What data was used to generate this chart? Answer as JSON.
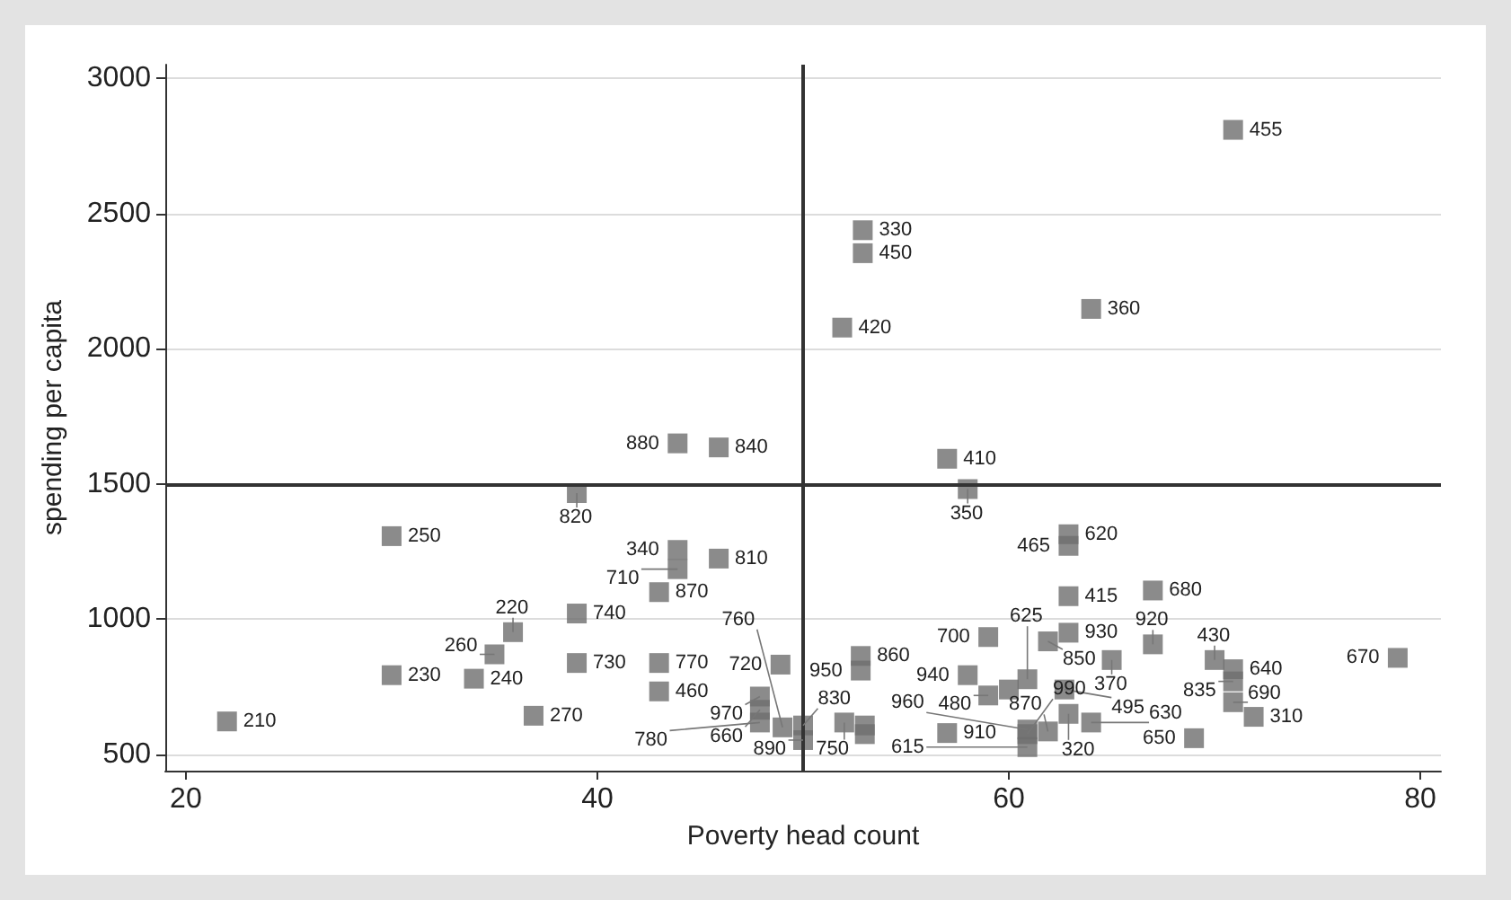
{
  "chart_data": {
    "type": "scatter",
    "xlabel": "Poverty head count",
    "ylabel": "spending per capita",
    "x": [
      22.0,
      30.0,
      30.0,
      34.0,
      35.0,
      35.9,
      36.9,
      39.0,
      39.0,
      39.0,
      43.0,
      43.0,
      43.0,
      43.9,
      45.9,
      43.9,
      43.9,
      45.9,
      47.9,
      47.9,
      47.9,
      48.9,
      50.0,
      50.0,
      52.0,
      52.8,
      52.8,
      57.0,
      57.0,
      58.0,
      62.9,
      62.9,
      62.9,
      67.0,
      59.0,
      61.9,
      62.9,
      65.0,
      67.0,
      70.0,
      70.9,
      70.9,
      70.9,
      71.9,
      69.0,
      78.9,
      58.0,
      59.0,
      60.0,
      60.9,
      62.7,
      62.9,
      64.0,
      61.9,
      60.9,
      60.9,
      60.9,
      70.9,
      52.9,
      52.9,
      51.9,
      64.0,
      49.0,
      53.0,
      53.0
    ],
    "series": [
      {
        "color": "#6e6e6e",
        "values": [
          622,
          1307,
          793,
          780,
          870,
          952,
          643,
          1021,
          838,
          1466,
          1100,
          838,
          733,
          1650,
          1635,
          1256,
          1185,
          1224,
          714,
          665,
          618,
          832,
          607,
          553,
          618,
          864,
          810,
          579,
          1593,
          1481,
          1314,
          1271,
          1085,
          1106,
          934,
          918,
          950,
          849,
          907,
          849,
          815,
          770,
          693,
          639,
          560,
          857,
          793,
          718,
          740,
          778,
          740,
          650,
          618,
          585,
          592,
          575,
          527,
          2809,
          2438,
          2353,
          2078,
          2147,
          600,
          607,
          575
        ]
      }
    ],
    "annotations": [
      {
        "text": "210",
        "x": 22.0,
        "y": 622
      },
      {
        "text": "250",
        "x": 30.0,
        "y": 1307
      },
      {
        "text": "230",
        "x": 30.0,
        "y": 793
      },
      {
        "text": "240",
        "x": 34.0,
        "y": 780
      },
      {
        "text": "260",
        "x": 35.0,
        "y": 870
      },
      {
        "text": "220",
        "x": 35.9,
        "y": 952
      },
      {
        "text": "270",
        "x": 36.9,
        "y": 643
      },
      {
        "text": "740",
        "x": 39.0,
        "y": 1021
      },
      {
        "text": "730",
        "x": 39.0,
        "y": 838
      },
      {
        "text": "820",
        "x": 39.0,
        "y": 1466
      },
      {
        "text": "870",
        "x": 43.0,
        "y": 1100
      },
      {
        "text": "770",
        "x": 43.0,
        "y": 838
      },
      {
        "text": "460",
        "x": 43.0,
        "y": 733
      },
      {
        "text": "880",
        "x": 43.9,
        "y": 1650
      },
      {
        "text": "840",
        "x": 45.9,
        "y": 1635
      },
      {
        "text": "340",
        "x": 43.9,
        "y": 1256
      },
      {
        "text": "710",
        "x": 43.9,
        "y": 1185
      },
      {
        "text": "810",
        "x": 45.9,
        "y": 1224
      },
      {
        "text": "970",
        "x": 47.9,
        "y": 714
      },
      {
        "text": "660",
        "x": 47.9,
        "y": 665
      },
      {
        "text": "780",
        "x": 47.9,
        "y": 618
      },
      {
        "text": "720",
        "x": 48.9,
        "y": 832
      },
      {
        "text": "830",
        "x": 50.0,
        "y": 607
      },
      {
        "text": "890",
        "x": 50.0,
        "y": 553
      },
      {
        "text": "750",
        "x": 52.0,
        "y": 618
      },
      {
        "text": "860",
        "x": 52.8,
        "y": 864
      },
      {
        "text": "950",
        "x": 52.8,
        "y": 810
      },
      {
        "text": "910",
        "x": 57.0,
        "y": 579
      },
      {
        "text": "410",
        "x": 57.0,
        "y": 1593
      },
      {
        "text": "350",
        "x": 58.0,
        "y": 1481
      },
      {
        "text": "620",
        "x": 62.9,
        "y": 1314
      },
      {
        "text": "465",
        "x": 62.9,
        "y": 1271
      },
      {
        "text": "415",
        "x": 62.9,
        "y": 1085
      },
      {
        "text": "680",
        "x": 67.0,
        "y": 1106
      },
      {
        "text": "700",
        "x": 59.0,
        "y": 934
      },
      {
        "text": "850",
        "x": 61.9,
        "y": 918
      },
      {
        "text": "930",
        "x": 62.9,
        "y": 950
      },
      {
        "text": "370",
        "x": 65.0,
        "y": 849
      },
      {
        "text": "920",
        "x": 67.0,
        "y": 907
      },
      {
        "text": "430",
        "x": 70.0,
        "y": 849
      },
      {
        "text": "640",
        "x": 70.9,
        "y": 815
      },
      {
        "text": "835",
        "x": 70.9,
        "y": 770
      },
      {
        "text": "690",
        "x": 70.9,
        "y": 693
      },
      {
        "text": "310",
        "x": 71.9,
        "y": 639
      },
      {
        "text": "650",
        "x": 69.0,
        "y": 560
      },
      {
        "text": "670",
        "x": 78.9,
        "y": 857
      },
      {
        "text": "940",
        "x": 58.0,
        "y": 793
      },
      {
        "text": "480",
        "x": 59.0,
        "y": 718
      },
      {
        "text": "625",
        "x": 60.9,
        "y": 778
      },
      {
        "text": "495",
        "x": 62.7,
        "y": 740
      },
      {
        "text": "320",
        "x": 62.9,
        "y": 650
      },
      {
        "text": "630",
        "x": 64.0,
        "y": 618
      },
      {
        "text": "870",
        "x": 61.9,
        "y": 585
      },
      {
        "text": "960",
        "x": 60.9,
        "y": 592
      },
      {
        "text": "990",
        "x": 60.9,
        "y": 575
      },
      {
        "text": "615",
        "x": 60.9,
        "y": 527
      },
      {
        "text": "455",
        "x": 70.9,
        "y": 2809
      },
      {
        "text": "330",
        "x": 52.9,
        "y": 2438
      },
      {
        "text": "450",
        "x": 52.9,
        "y": 2353
      },
      {
        "text": "420",
        "x": 51.9,
        "y": 2078
      },
      {
        "text": "360",
        "x": 64.0,
        "y": 2147
      },
      {
        "text": "760",
        "x": 49.0,
        "y": 600
      }
    ],
    "xlim": [
      19,
      81
    ],
    "xticks": [
      20,
      40,
      60,
      80
    ],
    "ylim": [
      440,
      3050
    ],
    "yticks": [
      500,
      1000,
      1500,
      2000,
      2500,
      3000
    ],
    "grid": "y",
    "marker": "square",
    "ref_lines": [
      {
        "axis": "x",
        "value": 50,
        "color": "#333333"
      },
      {
        "axis": "y",
        "value": 1500,
        "color": "#333333"
      }
    ]
  }
}
